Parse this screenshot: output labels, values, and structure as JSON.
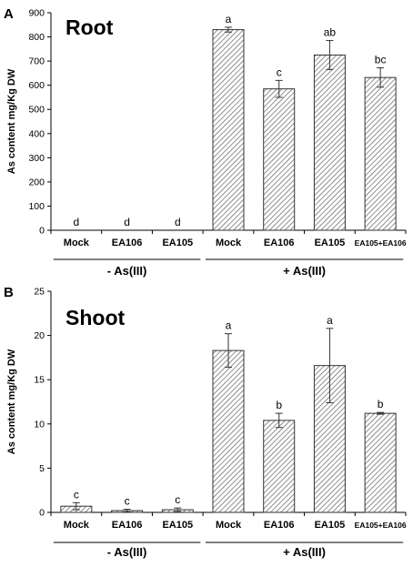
{
  "chart_data": [
    {
      "type": "bar",
      "panel": "A",
      "title": "Root",
      "ylabel": "As content mg/Kg DW",
      "xlabel": "",
      "ylim": [
        0,
        900
      ],
      "yticks": [
        0,
        100,
        200,
        300,
        400,
        500,
        600,
        700,
        800,
        900
      ],
      "categories": [
        "Mock",
        "EA106",
        "EA105",
        "Mock",
        "EA106",
        "EA105",
        "EA105+EA106"
      ],
      "values": [
        0,
        0,
        0,
        830,
        585,
        725,
        632
      ],
      "errors": [
        0,
        0,
        0,
        10,
        35,
        60,
        40
      ],
      "significance": [
        "d",
        "d",
        "d",
        "a",
        "c",
        "ab",
        "bc"
      ],
      "groups": [
        {
          "label": "- As(III)",
          "categories": [
            0,
            1,
            2
          ]
        },
        {
          "label": "+ As(III)",
          "categories": [
            3,
            4,
            5,
            6
          ]
        }
      ],
      "grid": false,
      "legend": "none"
    },
    {
      "type": "bar",
      "panel": "B",
      "title": "Shoot",
      "ylabel": "As content mg/Kg DW",
      "xlabel": "",
      "ylim": [
        0,
        25
      ],
      "yticks": [
        0,
        5,
        10,
        15,
        20,
        25
      ],
      "categories": [
        "Mock",
        "EA106",
        "EA105",
        "Mock",
        "EA106",
        "EA105",
        "EA105+EA106"
      ],
      "values": [
        0.7,
        0.2,
        0.3,
        18.3,
        10.4,
        16.6,
        11.2
      ],
      "errors": [
        0.4,
        0.15,
        0.2,
        1.9,
        0.8,
        4.2,
        0.1
      ],
      "significance": [
        "c",
        "c",
        "c",
        "a",
        "b",
        "a",
        "b"
      ],
      "groups": [
        {
          "label": "- As(III)",
          "categories": [
            0,
            1,
            2
          ]
        },
        {
          "label": "+ As(III)",
          "categories": [
            3,
            4,
            5,
            6
          ]
        }
      ],
      "grid": false,
      "legend": "none"
    }
  ],
  "colors": {
    "bar_fill": "#ffffff",
    "hatch": "#555555",
    "axis": "#000000"
  }
}
